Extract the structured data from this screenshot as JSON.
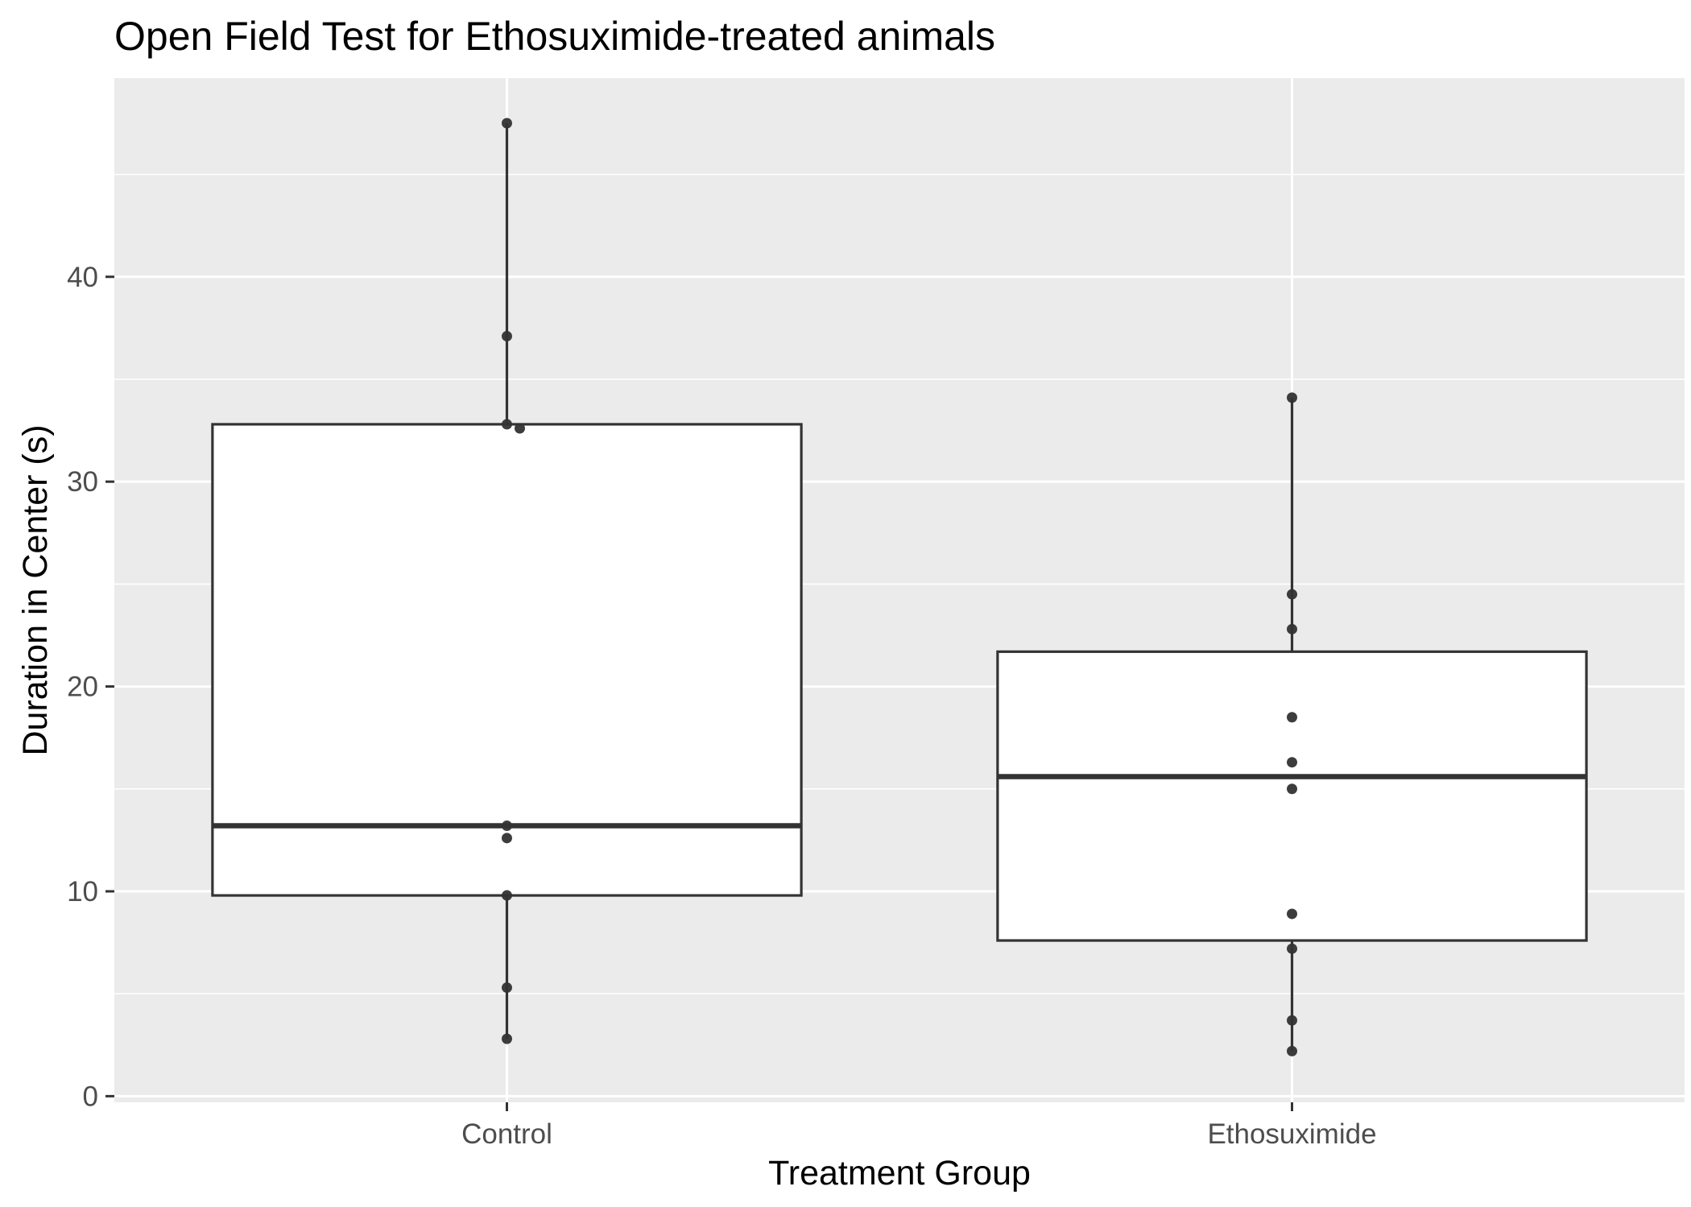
{
  "chart_data": {
    "type": "box",
    "title": "Open Field Test for Ethosuximide-treated animals",
    "xlabel": "Treatment Group",
    "ylabel": "Duration in Center (s)",
    "categories": [
      "Control",
      "Ethosuximide"
    ],
    "ylim": [
      -0.3,
      49.7
    ],
    "yticks": [
      0,
      10,
      20,
      30,
      40
    ],
    "grid": true,
    "legend": "none",
    "boxes": [
      {
        "category": "Control",
        "q1": 9.8,
        "median": 13.2,
        "q3": 32.8,
        "whisker_low": 2.8,
        "whisker_high": 47.5
      },
      {
        "category": "Ethosuximide",
        "q1": 7.6,
        "median": 15.6,
        "q3": 21.7,
        "whisker_low": 2.2,
        "whisker_high": 34.1
      }
    ],
    "points": [
      {
        "category": "Control",
        "values": [
          47.5,
          37.1,
          32.8,
          32.6,
          13.2,
          12.6,
          9.8,
          5.3,
          2.8
        ]
      },
      {
        "category": "Ethosuximide",
        "values": [
          34.1,
          24.5,
          22.8,
          18.5,
          16.3,
          15.0,
          8.9,
          7.2,
          3.7,
          2.2
        ]
      }
    ],
    "colors": {
      "panel": "#ebebeb",
      "grid": "#ffffff",
      "box_fill": "#ffffff",
      "box_line": "#333333",
      "point": "#333333",
      "tick_text": "#4d4d4d"
    }
  }
}
